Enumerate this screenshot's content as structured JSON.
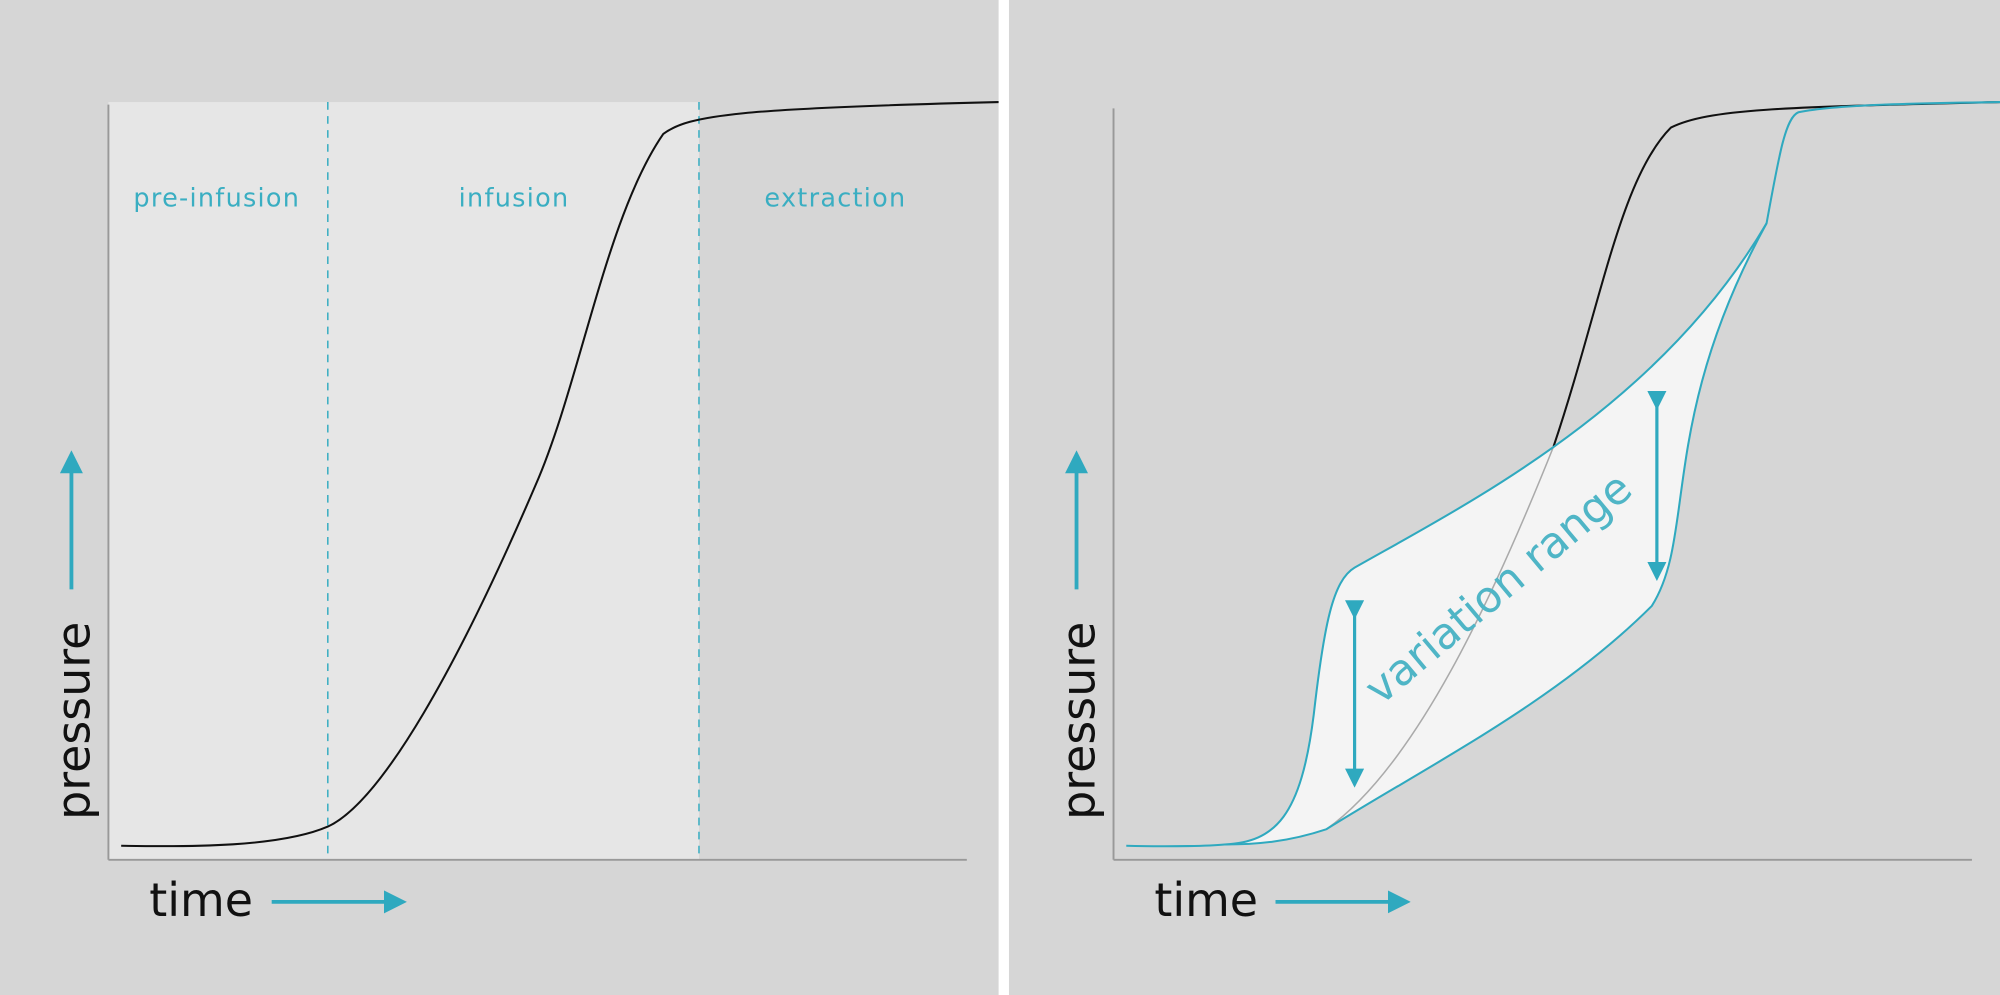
{
  "left_panel": {
    "phases": [
      "pre-infusion",
      "infusion",
      "extraction"
    ],
    "y_label": "pressure",
    "x_label": "time"
  },
  "right_panel": {
    "y_label": "pressure",
    "x_label": "time",
    "annotation": "variation range"
  }
}
